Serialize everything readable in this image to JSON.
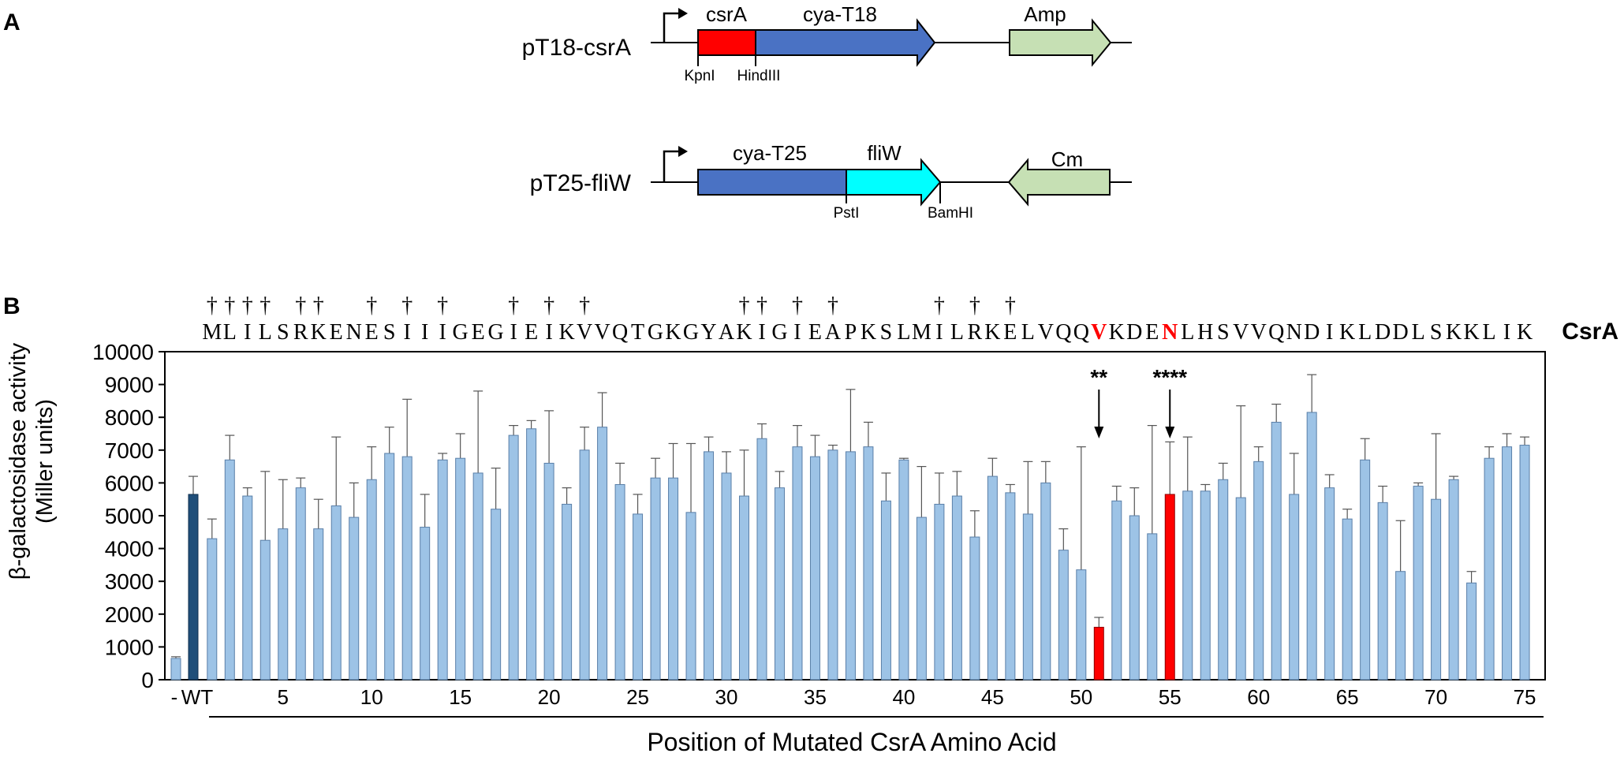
{
  "panel_a": {
    "label": "A",
    "construct1": {
      "name": "pT18-csrA",
      "gene1": "csrA",
      "gene2": "cya-T18",
      "marker": "Amp",
      "site1": "KpnI",
      "site2": "HindIII",
      "colors": {
        "gene1": "#ff0000",
        "gene2": "#4a72c4",
        "marker": "#c6e0b4"
      }
    },
    "construct2": {
      "name": "pT25-fliW",
      "gene1": "cya-T25",
      "gene2": "fliW",
      "marker": "Cm",
      "site1": "PstI",
      "site2": "BamHI",
      "colors": {
        "gene1": "#4a72c4",
        "gene2": "#00ffff",
        "marker": "#c6e0b4"
      }
    }
  },
  "panel_b": {
    "label": "B",
    "protein_label": "CsrA",
    "dagger": "†",
    "sequence": "MLILSRKENESIIIGEGIEIKVVQTGKGYAKIGIEAPKSLMILRKELVQQVKDENLHSVVQNDIKLDDLSKKLIK",
    "dagger_positions": [
      1,
      2,
      3,
      4,
      6,
      7,
      10,
      12,
      14,
      18,
      20,
      22,
      31,
      32,
      34,
      36,
      42,
      44,
      46
    ],
    "highlight_positions": [
      51,
      55
    ],
    "highlight_color": "#ff0000",
    "annotations": [
      {
        "position": 51,
        "label": "**"
      },
      {
        "position": 55,
        "label": "****"
      }
    ]
  },
  "chart_data": {
    "type": "bar",
    "title": "",
    "xlabel": "Position of Mutated CsrA Amino Acid",
    "ylabel_line1": "β-galactosidase activity",
    "ylabel_line2": "(Miller units)",
    "ylim": [
      0,
      10000
    ],
    "yticks": [
      "0",
      "1000",
      "2000",
      "3000",
      "4000",
      "5000",
      "6000",
      "7000",
      "8000",
      "9000",
      "10000"
    ],
    "x_special_labels": [
      "-",
      "WT"
    ],
    "xticks": [
      "5",
      "10",
      "15",
      "20",
      "25",
      "30",
      "35",
      "40",
      "45",
      "50",
      "55",
      "60",
      "65",
      "70",
      "75"
    ],
    "colors": {
      "default": "#9dc3e6",
      "wt": "#1f4e79",
      "highlight": "#ff0000",
      "edge": "#5a7fa8"
    },
    "controls": [
      {
        "label": "-",
        "value": 650,
        "error": 50,
        "color": "default"
      },
      {
        "label": "WT",
        "value": 5650,
        "error": 550,
        "color": "wt"
      }
    ],
    "mutant_positions": [
      1,
      2,
      3,
      4,
      5,
      6,
      7,
      8,
      9,
      10,
      11,
      12,
      13,
      14,
      15,
      16,
      17,
      18,
      19,
      20,
      21,
      22,
      23,
      24,
      25,
      26,
      27,
      28,
      29,
      30,
      31,
      32,
      33,
      34,
      35,
      36,
      37,
      38,
      39,
      40,
      41,
      42,
      43,
      44,
      45,
      46,
      47,
      48,
      49,
      50,
      51,
      52,
      53,
      54,
      55,
      56,
      57,
      58,
      59,
      60,
      61,
      62,
      63,
      64,
      65,
      66,
      67,
      68,
      69,
      70,
      71,
      72,
      73,
      74,
      75
    ],
    "values": [
      4300,
      6700,
      5600,
      4250,
      4600,
      5850,
      4600,
      5300,
      4950,
      6100,
      6900,
      6800,
      4650,
      6700,
      6750,
      6300,
      5200,
      7450,
      7650,
      6600,
      5350,
      7000,
      7700,
      5950,
      5050,
      6150,
      6150,
      5100,
      6950,
      6300,
      5600,
      7350,
      5850,
      7100,
      6800,
      7000,
      6950,
      7100,
      5450,
      6700,
      4950,
      5350,
      5600,
      4350,
      6200,
      5700,
      5050,
      6000,
      3950,
      3350,
      1600,
      5450,
      5000,
      4450,
      5650,
      5750,
      5750,
      6100,
      5550,
      6650,
      7850,
      5650,
      8150,
      5850,
      4900,
      6700,
      5400,
      3300,
      5900,
      5500,
      6100,
      2950,
      6750,
      7100,
      7150
    ],
    "errors": [
      600,
      750,
      250,
      2100,
      1500,
      300,
      900,
      2100,
      1050,
      1000,
      800,
      1750,
      1000,
      200,
      750,
      2500,
      1250,
      300,
      250,
      1600,
      500,
      700,
      1050,
      650,
      600,
      600,
      1050,
      2100,
      450,
      650,
      1400,
      450,
      500,
      650,
      650,
      150,
      1900,
      750,
      850,
      50,
      1550,
      950,
      750,
      800,
      550,
      250,
      1600,
      650,
      650,
      3750,
      300,
      450,
      850,
      3300,
      1600,
      1650,
      200,
      500,
      2800,
      450,
      550,
      1250,
      1150,
      400,
      300,
      650,
      500,
      1550,
      100,
      2000,
      100,
      350,
      350,
      400,
      250
    ],
    "bar_colors": {
      "51": "highlight",
      "55": "highlight"
    }
  }
}
